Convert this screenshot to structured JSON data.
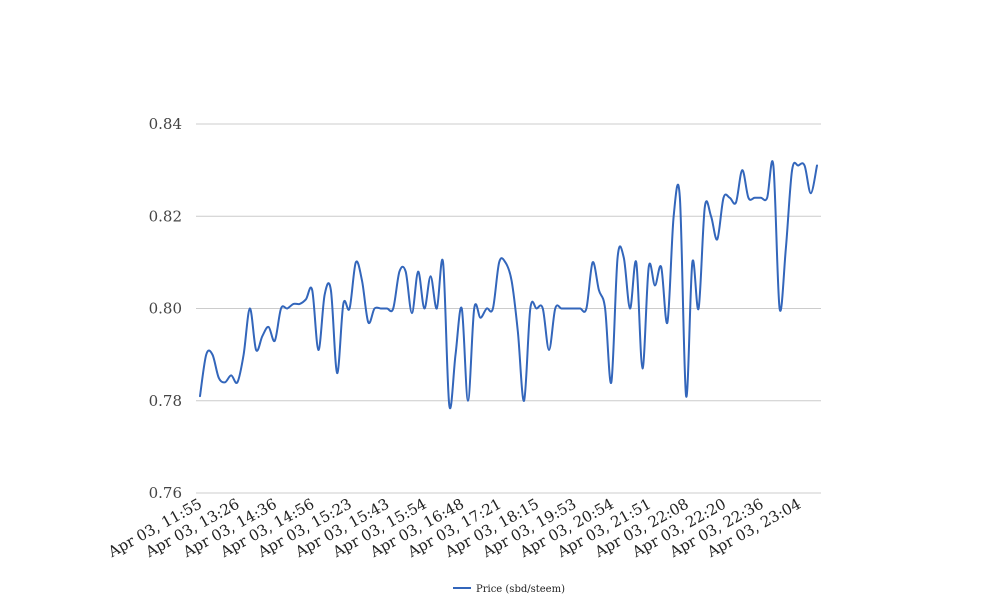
{
  "chart_data": {
    "type": "line",
    "title": "",
    "xlabel": "",
    "ylabel": "",
    "ylim": [
      0.76,
      0.84
    ],
    "yticks": [
      "0.76",
      "0.78",
      "0.80",
      "0.82",
      "0.84"
    ],
    "grid": true,
    "legend": {
      "placement": "bottom-center"
    },
    "x_tick_labels": [
      "Apr 03, 11:55",
      "Apr 03, 13:26",
      "Apr 03, 14:36",
      "Apr 03, 14:56",
      "Apr 03, 15:23",
      "Apr 03, 15:43",
      "Apr 03, 15:54",
      "Apr 03, 16:48",
      "Apr 03, 17:21",
      "Apr 03, 18:15",
      "Apr 03, 19:53",
      "Apr 03, 20:54",
      "Apr 03, 21:51",
      "Apr 03, 22:08",
      "Apr 03, 22:20",
      "Apr 03, 22:36",
      "Apr 03, 23:04"
    ],
    "series": [
      {
        "name": "Price (sbd/steem)",
        "color": "#3366bb",
        "values": [
          0.781,
          0.79,
          0.79,
          0.785,
          0.784,
          0.7855,
          0.784,
          0.79,
          0.8,
          0.791,
          0.794,
          0.796,
          0.793,
          0.8,
          0.8,
          0.801,
          0.801,
          0.802,
          0.804,
          0.791,
          0.803,
          0.804,
          0.786,
          0.801,
          0.8,
          0.81,
          0.806,
          0.797,
          0.8,
          0.8,
          0.8,
          0.8,
          0.808,
          0.808,
          0.799,
          0.808,
          0.8,
          0.807,
          0.8,
          0.81,
          0.779,
          0.79,
          0.8,
          0.78,
          0.8,
          0.798,
          0.8,
          0.8,
          0.81,
          0.81,
          0.806,
          0.795,
          0.78,
          0.8,
          0.8,
          0.8,
          0.791,
          0.8,
          0.8,
          0.8,
          0.8,
          0.8,
          0.8,
          0.81,
          0.804,
          0.8,
          0.784,
          0.811,
          0.811,
          0.8,
          0.81,
          0.787,
          0.809,
          0.805,
          0.809,
          0.797,
          0.82,
          0.824,
          0.781,
          0.81,
          0.8,
          0.822,
          0.82,
          0.815,
          0.824,
          0.824,
          0.823,
          0.83,
          0.824,
          0.824,
          0.824,
          0.824,
          0.831,
          0.8,
          0.813,
          0.83,
          0.831,
          0.831,
          0.825,
          0.831
        ]
      }
    ]
  }
}
